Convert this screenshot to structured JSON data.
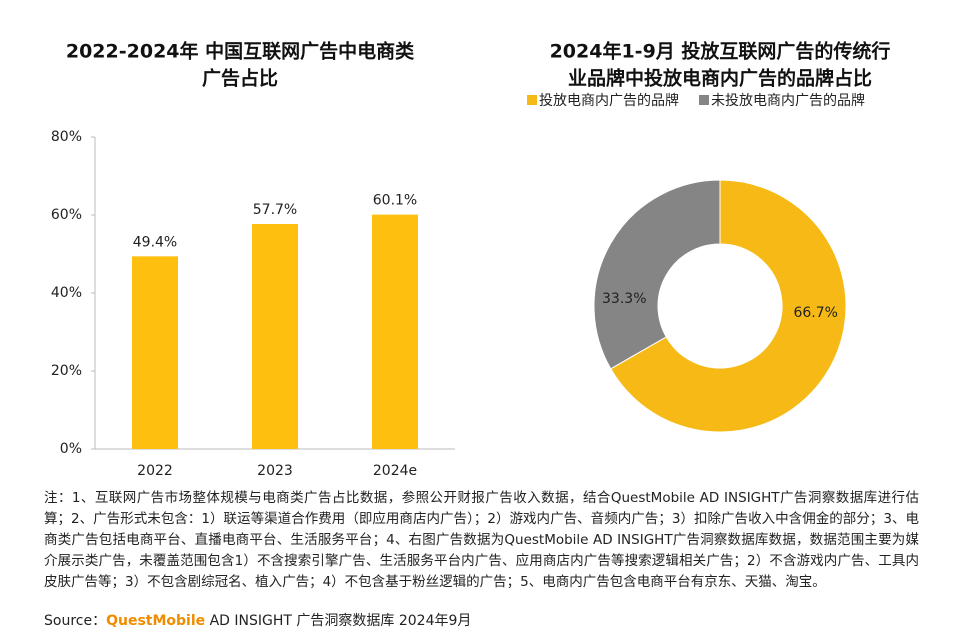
{
  "chart_data": [
    {
      "type": "bar",
      "title": [
        "2022-2024年 中国互联网广告中电商类",
        "广告占比"
      ],
      "categories": [
        "2022",
        "2023",
        "2024e"
      ],
      "values": [
        49.4,
        57.7,
        60.1
      ],
      "value_labels": [
        "49.4%",
        "57.7%",
        "60.1%"
      ],
      "color": "#FFBF0F",
      "ylim": [
        0,
        80
      ],
      "yticks": [
        {
          "value": 0,
          "label": "0%"
        },
        {
          "value": 20,
          "label": "20%"
        },
        {
          "value": 40,
          "label": "40%"
        },
        {
          "value": 60,
          "label": "60%"
        },
        {
          "value": 80,
          "label": "80%"
        }
      ]
    },
    {
      "type": "donut",
      "title": [
        "2024年1-9月 投放互联网广告的传统行",
        "业品牌中投放电商内广告的品牌占比"
      ],
      "categories": [
        "投放电商内广告的品牌",
        "未投放电商内广告的品牌"
      ],
      "values": [
        66.7,
        33.3
      ],
      "value_labels": [
        "66.7%",
        "33.3%"
      ],
      "colors": [
        "#F7B916",
        "#858585"
      ],
      "legend": "top"
    }
  ],
  "note": "注：1、互联网广告市场整体规模与电商类广告占比数据，参照公开财报广告收入数据，结合QuestMobile AD INSIGHT广告洞察数据库进行估算；2、广告形式未包含：1）联运等渠道合作费用（即应用商店内广告）；2）游戏内广告、音频内广告；3）扣除广告收入中含佣金的部分；3、电商类广告包括电商平台、直播电商平台、生活服务平台；4、右图广告数据为QuestMobile AD INSIGHT广告洞察数据库数据，数据范围主要为媒介展示类广告，未覆盖范围包含1）不含搜索引擎广告、生活服务平台内广告、应用商店内广告等搜索逻辑相关广告；2）不含游戏内广告、工具内皮肤广告等；3）不包含剧综冠名、植入广告；4）不包含基于粉丝逻辑的广告；5、电商内广告包含电商平台有京东、天猫、淘宝。",
  "source": {
    "label": "Source：",
    "brand": "QuestMobile",
    "rest": " AD INSIGHT 广告洞察数据库 2024年9月"
  }
}
